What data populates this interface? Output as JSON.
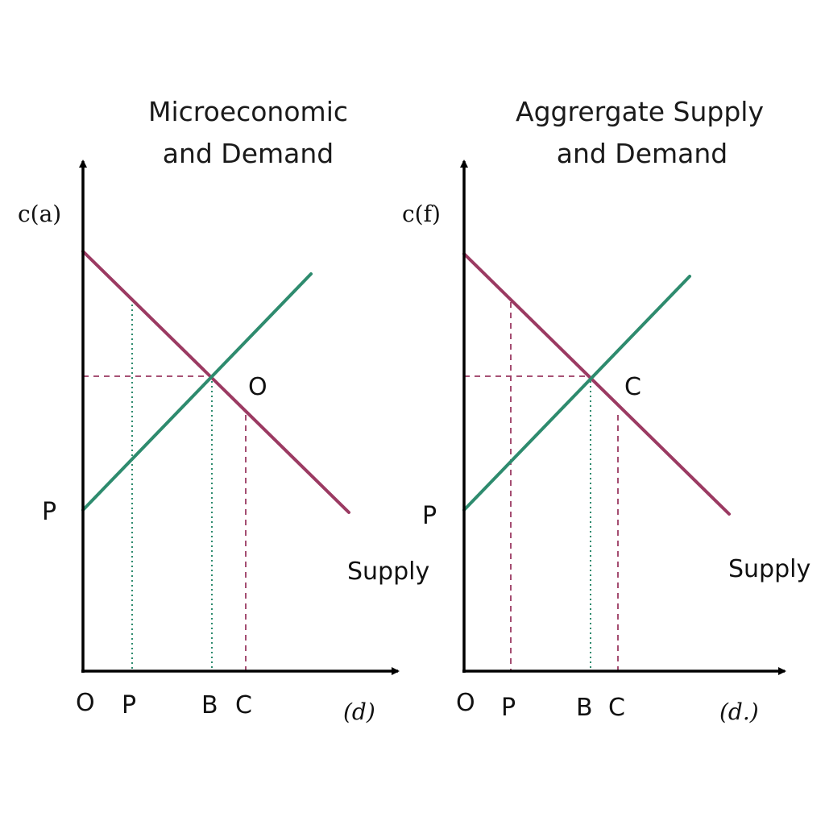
{
  "colors": {
    "demand": "#9b3a62",
    "supply": "#2e8b6e",
    "axis": "#000000",
    "guide_demand": "#9b3a62",
    "guide_supply": "#2e8b6e"
  },
  "panels": [
    {
      "title_line1": "Microeconomic",
      "title_line2": "and Demand",
      "y_axis_label": "c(a)",
      "x_axis_label": "(d)",
      "origin_label": "O",
      "y_intercept_label": "P",
      "equilibrium_label": "O",
      "supply_label": "Supply",
      "x_tick_labels": [
        "P",
        "B",
        "C"
      ]
    },
    {
      "title_line1": "Aggrergate Supply",
      "title_line2": "and Demand",
      "y_axis_label": "c(f)",
      "x_axis_label": "(d.)",
      "origin_label": "O",
      "y_intercept_label": "P",
      "equilibrium_label": "C",
      "supply_label": "Supply",
      "x_tick_labels": [
        "P",
        "B",
        "C"
      ]
    }
  ]
}
